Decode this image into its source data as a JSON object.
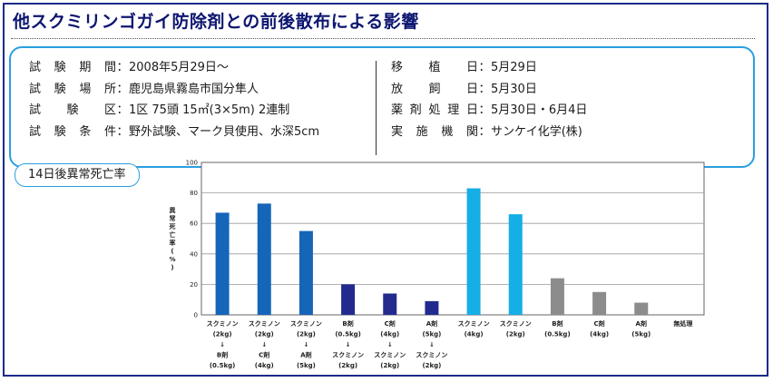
{
  "title": "他スクミリンゴガイ防除剤との前後散布による影響",
  "info": {
    "left": [
      {
        "key": "試験期間",
        "value": "2008年5月29日〜"
      },
      {
        "key": "試験場所",
        "value": "鹿児島県霧島市国分隼人"
      },
      {
        "key": "試験区",
        "value": "1区 75頭 15㎡(3×5m) 2連制"
      },
      {
        "key": "試験条件",
        "value": "野外試験、マーク貝使用、水深5cm"
      }
    ],
    "right": [
      {
        "key": "移植日",
        "value": "5月29日"
      },
      {
        "key": "放飼日",
        "value": "5月30日"
      },
      {
        "key": "薬剤処理日",
        "value": "5月30日・6月4日"
      },
      {
        "key": "実施機関",
        "value": "サンケイ化学(株)"
      }
    ],
    "separator": "："
  },
  "chart_label": "14日後異常死亡率",
  "chart_data": {
    "type": "bar",
    "ylabel": "異常死亡率(%)",
    "ylim": [
      0,
      100
    ],
    "yticks": [
      0,
      20,
      40,
      60,
      80,
      100
    ],
    "grid": true,
    "categories": [
      {
        "lines": [
          "スクミノン",
          "(2kg)",
          "↓",
          "B剤",
          "(0.5kg)"
        ],
        "value": 67,
        "color": "#1565b8"
      },
      {
        "lines": [
          "スクミノン",
          "(2kg)",
          "↓",
          "C剤",
          "(4kg)"
        ],
        "value": 73,
        "color": "#1565b8"
      },
      {
        "lines": [
          "スクミノン",
          "(2kg)",
          "↓",
          "A剤",
          "(5kg)"
        ],
        "value": 55,
        "color": "#1565b8"
      },
      {
        "lines": [
          "B剤",
          "(0.5kg)",
          "↓",
          "スクミノン",
          "(2kg)"
        ],
        "value": 20,
        "color": "#232a8e"
      },
      {
        "lines": [
          "C剤",
          "(4kg)",
          "↓",
          "スクミノン",
          "(2kg)"
        ],
        "value": 14,
        "color": "#232a8e"
      },
      {
        "lines": [
          "A剤",
          "(5kg)",
          "↓",
          "スクミノン",
          "(2kg)"
        ],
        "value": 9,
        "color": "#232a8e"
      },
      {
        "lines": [
          "スクミノン",
          "(4kg)"
        ],
        "value": 83,
        "color": "#15aee6"
      },
      {
        "lines": [
          "スクミノン",
          "(2kg)"
        ],
        "value": 66,
        "color": "#15aee6"
      },
      {
        "lines": [
          "B剤",
          "(0.5kg)"
        ],
        "value": 24,
        "color": "#8c8c8c"
      },
      {
        "lines": [
          "C剤",
          "(4kg)"
        ],
        "value": 15,
        "color": "#8c8c8c"
      },
      {
        "lines": [
          "A剤",
          "(5kg)"
        ],
        "value": 8,
        "color": "#8c8c8c"
      },
      {
        "lines": [
          "無処理"
        ],
        "value": 0,
        "color": "#8c8c8c"
      }
    ]
  }
}
